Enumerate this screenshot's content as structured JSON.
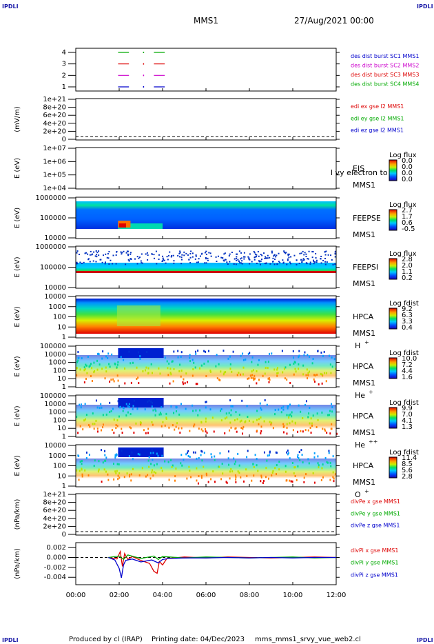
{
  "header": {
    "corner_labels": [
      "IPDLI",
      "IPDLI",
      "IPDLI",
      "IPDLI"
    ],
    "spacecraft": "MMS1",
    "date": "27/Aug/2021 00:00"
  },
  "footer": {
    "produced_by": "Produced by cl (IRAP)",
    "printing_date": "Printing date: 04/Dec/2023",
    "filename": "mms_mms1_srvy_vue_web2.cl"
  },
  "colors": {
    "background": "#ffffff",
    "sc1": "#0000cc",
    "sc2": "#cc00cc",
    "sc3": "#dd0000",
    "sc4": "#00aa00",
    "dashed_zero": "#000000"
  },
  "chart_data": [
    {
      "id": "availability",
      "type": "line",
      "yticks": [
        "4",
        "3",
        "2",
        "1"
      ],
      "right_labels": [
        {
          "text": "des dist burst SC1 MMS1",
          "color": "#0000cc"
        },
        {
          "text": "des dist burst SC2 MMS2",
          "color": "#cc00cc"
        },
        {
          "text": "des dist burst SC3 MMS3",
          "color": "#dd0000"
        },
        {
          "text": "des dist burst SC4 MMS4",
          "color": "#00aa00"
        }
      ],
      "segments": [
        {
          "sc": 4,
          "color": "#00aa00",
          "spans": [
            [
              1.95,
              2.45
            ],
            [
              3.6,
              4.1
            ]
          ]
        },
        {
          "sc": 3,
          "color": "#dd0000",
          "spans": [
            [
              1.95,
              2.45
            ],
            [
              3.6,
              4.1
            ]
          ]
        },
        {
          "sc": 2,
          "color": "#cc00cc",
          "spans": [
            [
              1.95,
              2.45
            ],
            [
              3.6,
              4.1
            ]
          ]
        },
        {
          "sc": 1,
          "color": "#0000cc",
          "spans": [
            [
              1.95,
              2.45
            ],
            [
              3.6,
              4.1
            ]
          ]
        }
      ]
    },
    {
      "id": "edi",
      "type": "line",
      "ylabel": "(mV/m)",
      "yticks": [
        "1e+21",
        "8e+20",
        "6e+20",
        "4e+20",
        "2e+20",
        "0"
      ],
      "right_labels": [
        {
          "text": "edi ex gse l2 MMS1",
          "color": "#dd0000"
        },
        {
          "text": "edi ey gse l2 MMS1",
          "color": "#00aa00"
        },
        {
          "text": "edi ez gse l2 MMS1",
          "color": "#0000cc"
        }
      ]
    },
    {
      "id": "eis",
      "type": "heatmap",
      "ylabel": "E (eV)",
      "yticks": [
        "1e+07",
        "1e+06",
        "1e+05",
        "1e+04"
      ],
      "side_labels": [
        "EIS",
        "MMS1"
      ],
      "overlay_text": "l vy electron to",
      "colorbar": {
        "title": "Log flux",
        "labels": [
          "0.0",
          "0.0",
          "0.0",
          "0.0"
        ]
      }
    },
    {
      "id": "feepse",
      "type": "heatmap",
      "ylabel": "E (eV)",
      "yticks": [
        "1000000",
        "100000",
        "10000"
      ],
      "side_labels": [
        "FEEPSE",
        "MMS1"
      ],
      "colorbar": {
        "title": "Log flux",
        "labels": [
          "2.7",
          "1.7",
          "0.6",
          "-0.5"
        ]
      }
    },
    {
      "id": "feepsi",
      "type": "heatmap",
      "ylabel": "E (eV)",
      "yticks": [
        "1000000",
        "100000",
        "10000"
      ],
      "side_labels": [
        "FEEPSI",
        "MMS1"
      ],
      "colorbar": {
        "title": "Log flux",
        "labels": [
          "2.8",
          "2.0",
          "1.1",
          "0.2"
        ]
      }
    },
    {
      "id": "hpca_h",
      "type": "heatmap",
      "ylabel": "E (eV)",
      "yticks": [
        "10000",
        "1000",
        "100",
        "10",
        "1"
      ],
      "side_labels": [
        "HPCA",
        "MMS1"
      ],
      "species": "H",
      "species_sup": "+",
      "colorbar": {
        "title": "Log fdist",
        "labels": [
          "9.2",
          "6.3",
          "3.3",
          "0.4"
        ]
      }
    },
    {
      "id": "hpca_he",
      "type": "heatmap",
      "ylabel": "E (eV)",
      "yticks": [
        "100000",
        "10000",
        "1000",
        "100",
        "10",
        "1"
      ],
      "side_labels": [
        "HPCA",
        "MMS1"
      ],
      "species": "He",
      "species_sup": "+",
      "colorbar": {
        "title": "Log fdist",
        "labels": [
          "10.0",
          "7.2",
          "4.4",
          "1.6"
        ]
      }
    },
    {
      "id": "hpca_hepp",
      "type": "heatmap",
      "ylabel": "E (eV)",
      "yticks": [
        "100000",
        "10000",
        "1000",
        "100",
        "10",
        "1"
      ],
      "side_labels": [
        "HPCA",
        "MMS1"
      ],
      "species": "He",
      "species_sup": "++",
      "colorbar": {
        "title": "Log fdist",
        "labels": [
          "9.9",
          "7.0",
          "4.1",
          "1.3"
        ]
      }
    },
    {
      "id": "hpca_o",
      "type": "heatmap",
      "ylabel": "E (eV)",
      "yticks": [
        "10000",
        "1000",
        "100",
        "10",
        "1"
      ],
      "side_labels": [
        "HPCA",
        "MMS1"
      ],
      "species": "O",
      "species_sup": "+",
      "colorbar": {
        "title": "Log fdist",
        "labels": [
          "11.4",
          "8.5",
          "5.6",
          "2.8"
        ]
      }
    },
    {
      "id": "divpe",
      "type": "line",
      "ylabel": "(nPa/km)",
      "yticks": [
        "1e+21",
        "8e+20",
        "6e+20",
        "4e+20",
        "2e+20",
        "0"
      ],
      "right_labels": [
        {
          "text": "divPe x gse MMS1",
          "color": "#dd0000"
        },
        {
          "text": "divPe y gse MMS1",
          "color": "#00aa00"
        },
        {
          "text": "divPe z gse MMS1",
          "color": "#0000cc"
        }
      ]
    },
    {
      "id": "divpi",
      "type": "line",
      "ylabel": "(nPa/km)",
      "yticks": [
        "0.002",
        "0.000",
        "-0.002",
        "-0.004"
      ],
      "ylim": [
        -0.0055,
        0.003
      ],
      "right_labels": [
        {
          "text": "divPi x gse MMS1",
          "color": "#dd0000"
        },
        {
          "text": "divPi y gse MMS1",
          "color": "#00aa00"
        },
        {
          "text": "divPi z gse MMS1",
          "color": "#0000cc"
        }
      ],
      "series": [
        {
          "name": "divPi x gse MMS1",
          "color": "#dd0000",
          "x": [
            1.5,
            1.9,
            2.05,
            2.15,
            2.25,
            2.4,
            2.6,
            3.0,
            3.4,
            3.6,
            3.75,
            3.85,
            4.0,
            4.2,
            5,
            6,
            7,
            8,
            9,
            10,
            11,
            12
          ],
          "y": [
            0,
            -0.0003,
            0.0012,
            -0.0018,
            0.0008,
            -0.0004,
            0.0002,
            -0.0006,
            -0.0012,
            -0.0028,
            -0.0032,
            -0.0008,
            -0.0015,
            -0.0002,
            0.0001,
            -0.0001,
            0.0001,
            0,
            -0.0001,
            0,
            0.0001,
            0
          ]
        },
        {
          "name": "divPi y gse MMS1",
          "color": "#00aa00",
          "x": [
            1.5,
            2.0,
            2.2,
            2.4,
            3.0,
            3.6,
            3.8,
            4.0,
            5,
            6,
            7,
            8,
            9,
            10,
            11,
            12
          ],
          "y": [
            0,
            0.0003,
            -0.0004,
            0.0005,
            -0.0002,
            0.0003,
            -0.0004,
            0.0002,
            -0.0001,
            0.0001,
            0,
            -0.0001,
            0,
            0.0001,
            -0.0001,
            0
          ]
        },
        {
          "name": "divPi z gse MMS1",
          "color": "#0000cc",
          "x": [
            1.5,
            1.8,
            2.0,
            2.1,
            2.2,
            2.3,
            2.6,
            3.0,
            3.5,
            3.8,
            4.0,
            4.3,
            5,
            6,
            7,
            8,
            9,
            10,
            11,
            12
          ],
          "y": [
            0,
            -0.0005,
            -0.0022,
            -0.0041,
            -0.0015,
            -0.0006,
            -0.0003,
            -0.0009,
            -0.0005,
            -0.0011,
            -0.0004,
            -0.0002,
            -0.0001,
            -0.0001,
            0,
            -0.0001,
            0,
            -0.0001,
            0,
            0
          ]
        }
      ]
    }
  ],
  "xaxis": {
    "ticks": [
      "00:00",
      "02:00",
      "04:00",
      "06:00",
      "08:00",
      "10:00",
      "12:00"
    ],
    "range_hours": [
      0,
      12
    ]
  }
}
